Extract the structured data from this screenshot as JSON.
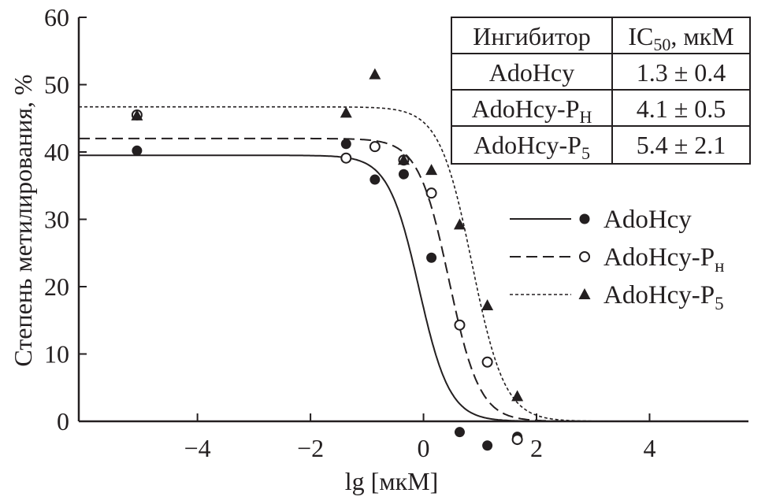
{
  "chart_data": {
    "type": "scatter",
    "xlabel": "lg [мкМ]",
    "ylabel": "Степень метилирования, %",
    "xlim": [
      -6.1,
      5.75
    ],
    "ylim": [
      0,
      60
    ],
    "xticks": [
      -4,
      -2,
      0,
      2,
      4
    ],
    "yticks": [
      0,
      10,
      20,
      30,
      40,
      50,
      60
    ],
    "grid": false,
    "legend_position": "right",
    "series": [
      {
        "name": "AdoHcy",
        "sub": "",
        "marker": "filled-circle",
        "line": "solid",
        "x": [
          -5.07,
          -1.37,
          -0.86,
          -0.35,
          0.14,
          0.64,
          1.13,
          1.66
        ],
        "y": [
          40.2,
          41.2,
          35.9,
          36.7,
          24.3,
          -1.6,
          -3.6,
          -2.3
        ],
        "fit": {
          "top": 39.5,
          "x50": -0.08,
          "hill": 1.6
        }
      },
      {
        "name": "AdoHcy-P",
        "sub": "н",
        "marker": "open-circle",
        "line": "dashed",
        "x": [
          -5.07,
          -1.37,
          -0.86,
          -0.35,
          0.14,
          0.64,
          1.13,
          1.66
        ],
        "y": [
          45.5,
          39.1,
          40.8,
          38.8,
          33.9,
          14.3,
          8.8,
          -2.7
        ],
        "fit": {
          "top": 42.0,
          "x50": 0.45,
          "hill": 1.6
        }
      },
      {
        "name": "AdoHcy-P",
        "sub": "5",
        "marker": "filled-triangle",
        "line": "dotted",
        "x": [
          -5.07,
          -1.37,
          -0.86,
          -0.35,
          0.14,
          0.64,
          1.13,
          1.66
        ],
        "y": [
          45.4,
          45.8,
          51.5,
          38.8,
          37.3,
          29.2,
          17.2,
          3.7
        ],
        "fit": {
          "top": 46.7,
          "x50": 0.86,
          "hill": 1.5
        }
      }
    ],
    "table": {
      "header": {
        "col1": "Ингибитор",
        "col2_main": "IC",
        "col2_sub": "50",
        "col2_rest": ", мкМ"
      },
      "rows": [
        {
          "name": "AdoHcy",
          "sub": "",
          "value": "1.3 ± 0.4"
        },
        {
          "name": "AdoHcy-P",
          "sub": "Н",
          "value": "4.1 ± 0.5"
        },
        {
          "name": "AdoHcy-P",
          "sub": "5",
          "value": "5.4 ± 2.1"
        }
      ]
    }
  }
}
